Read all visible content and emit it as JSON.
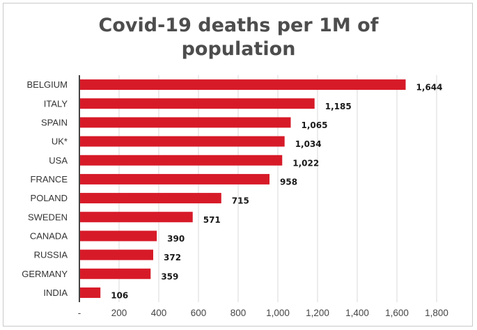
{
  "chart_data": {
    "type": "bar",
    "orientation": "horizontal",
    "title_lines": [
      "Covid-19 deaths per 1M of",
      "population"
    ],
    "categories": [
      "BELGIUM",
      "ITALY",
      "SPAIN",
      "UK*",
      "USA",
      "FRANCE",
      "POLAND",
      "SWEDEN",
      "CANADA",
      "RUSSIA",
      "GERMANY",
      "INDIA"
    ],
    "values": [
      1644,
      1185,
      1065,
      1034,
      1022,
      958,
      715,
      571,
      390,
      372,
      359,
      106
    ],
    "data_labels": [
      "1,644",
      "1,185",
      "1,065",
      "1,034",
      "1,022",
      "958",
      "715",
      "571",
      "390",
      "372",
      "359",
      "106"
    ],
    "xticks": [
      0,
      200,
      400,
      600,
      800,
      1000,
      1200,
      1400,
      1600,
      1800
    ],
    "xtick_labels": [
      "-",
      "200",
      "400",
      "600",
      "800",
      "1,000",
      "1,200",
      "1,400",
      "1,600",
      "1,800"
    ],
    "xlim": [
      0,
      1800
    ],
    "grid": true,
    "bar_color": "#d71a28"
  }
}
